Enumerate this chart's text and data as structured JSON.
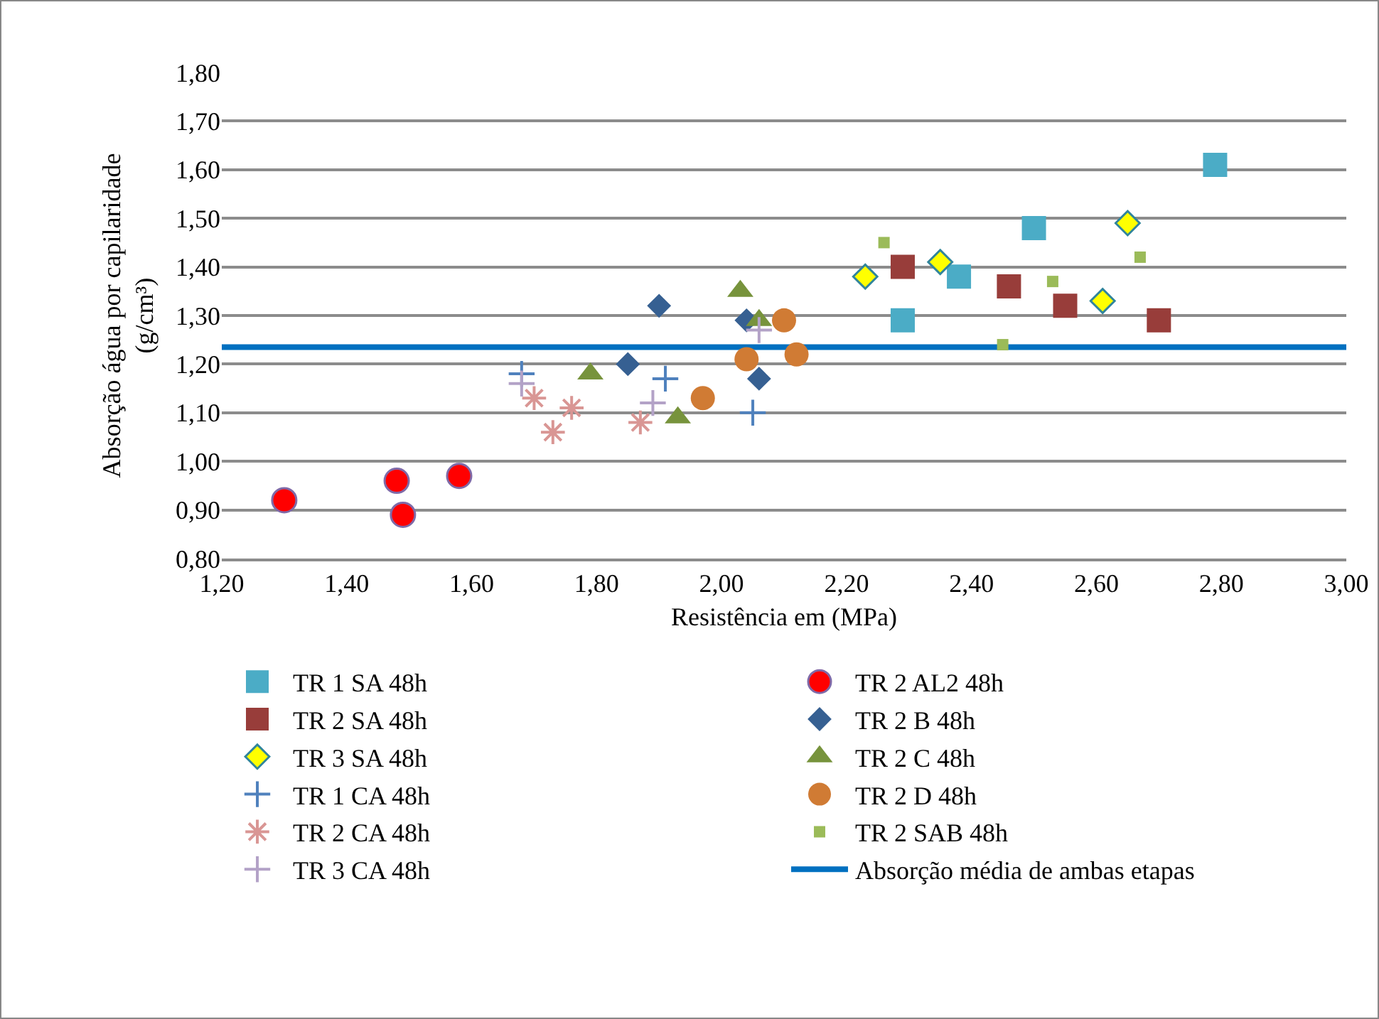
{
  "chart_data": {
    "type": "scatter",
    "xlabel": "Resistência em (MPa)",
    "ylabel": "Absorção água por capilaridade\n(g/cm³)",
    "xlim": [
      1.2,
      3.0
    ],
    "ylim": [
      0.8,
      1.8
    ],
    "xticks": [
      {
        "value": 1.2,
        "label": "1,20"
      },
      {
        "value": 1.4,
        "label": "1,40"
      },
      {
        "value": 1.6,
        "label": "1,60"
      },
      {
        "value": 1.8,
        "label": "1,80"
      },
      {
        "value": 2.0,
        "label": "2,00"
      },
      {
        "value": 2.2,
        "label": "2,20"
      },
      {
        "value": 2.4,
        "label": "2,40"
      },
      {
        "value": 2.6,
        "label": "2,60"
      },
      {
        "value": 2.8,
        "label": "2,80"
      },
      {
        "value": 3.0,
        "label": "3,00"
      }
    ],
    "yticks": [
      {
        "value": 0.8,
        "label": "0,80"
      },
      {
        "value": 0.9,
        "label": "0,90"
      },
      {
        "value": 1.0,
        "label": "1,00"
      },
      {
        "value": 1.1,
        "label": "1,10"
      },
      {
        "value": 1.2,
        "label": "1,20"
      },
      {
        "value": 1.3,
        "label": "1,30"
      },
      {
        "value": 1.4,
        "label": "1,40"
      },
      {
        "value": 1.5,
        "label": "1,50"
      },
      {
        "value": 1.6,
        "label": "1,60"
      },
      {
        "value": 1.7,
        "label": "1,70"
      },
      {
        "value": 1.8,
        "label": "1,80"
      }
    ],
    "grid": "y",
    "legend": "bottom",
    "series": [
      {
        "name": "TR 1 SA 48h",
        "color": "#4bacc6",
        "marker": "square",
        "x": [
          2.29,
          2.38,
          2.5,
          2.79
        ],
        "values": [
          1.29,
          1.38,
          1.48,
          1.61
        ]
      },
      {
        "name": "TR 2 SA 48h",
        "color": "#983d3a",
        "marker": "square",
        "x": [
          2.29,
          2.46,
          2.55,
          2.7
        ],
        "values": [
          1.4,
          1.36,
          1.32,
          1.29
        ]
      },
      {
        "name": "TR 3 SA 48h",
        "color": "#ffff00",
        "marker": "diamond",
        "x": [
          2.23,
          2.35,
          2.61,
          2.65
        ],
        "values": [
          1.38,
          1.41,
          1.33,
          1.49
        ]
      },
      {
        "name": "TR 1 CA 48h",
        "color": "#4f81bd",
        "marker": "cross",
        "x": [
          1.68,
          1.91,
          2.05
        ],
        "values": [
          1.18,
          1.17,
          1.1
        ]
      },
      {
        "name": "TR 2 CA 48h",
        "color": "#d99694",
        "marker": "cross",
        "x": [
          1.7,
          1.73,
          1.76,
          1.87
        ],
        "values": [
          1.13,
          1.06,
          1.11,
          1.08
        ]
      },
      {
        "name": "TR 3 CA 48h",
        "color": "#b3a2c7",
        "marker": "cross",
        "x": [
          1.68,
          1.89,
          2.06
        ],
        "values": [
          1.16,
          1.12,
          1.27
        ]
      },
      {
        "name": "TR 2 AL2 48h",
        "color": "#ff0000",
        "marker": "circle",
        "x": [
          1.3,
          1.48,
          1.49,
          1.58
        ],
        "values": [
          0.92,
          0.96,
          0.89,
          0.97
        ]
      },
      {
        "name": "TR 2 B 48h",
        "color": "#366092",
        "marker": "diamond",
        "x": [
          1.85,
          1.9,
          2.04,
          2.06
        ],
        "values": [
          1.2,
          1.32,
          1.29,
          1.17
        ]
      },
      {
        "name": "TR 2 C 48h",
        "color": "#77933c",
        "marker": "triangle",
        "x": [
          1.79,
          1.93,
          2.03,
          2.06
        ],
        "values": [
          1.18,
          1.09,
          1.35,
          1.29
        ]
      },
      {
        "name": "TR 2 D 48h",
        "color": "#d07b34",
        "marker": "circle",
        "x": [
          1.97,
          2.04,
          2.1,
          2.12
        ],
        "values": [
          1.13,
          1.21,
          1.29,
          1.22
        ]
      },
      {
        "name": "TR 2 SAB 48h",
        "color": "#9bbb59",
        "marker": "square",
        "x": [
          2.26,
          2.45,
          2.53,
          2.67
        ],
        "values": [
          1.45,
          1.24,
          1.37,
          1.42
        ]
      }
    ],
    "ref_lines": [
      {
        "axis": "y",
        "value": 1.235,
        "label": "Absorção média de ambas etapas",
        "color": "#0070c0",
        "line_style": "solid"
      }
    ]
  }
}
